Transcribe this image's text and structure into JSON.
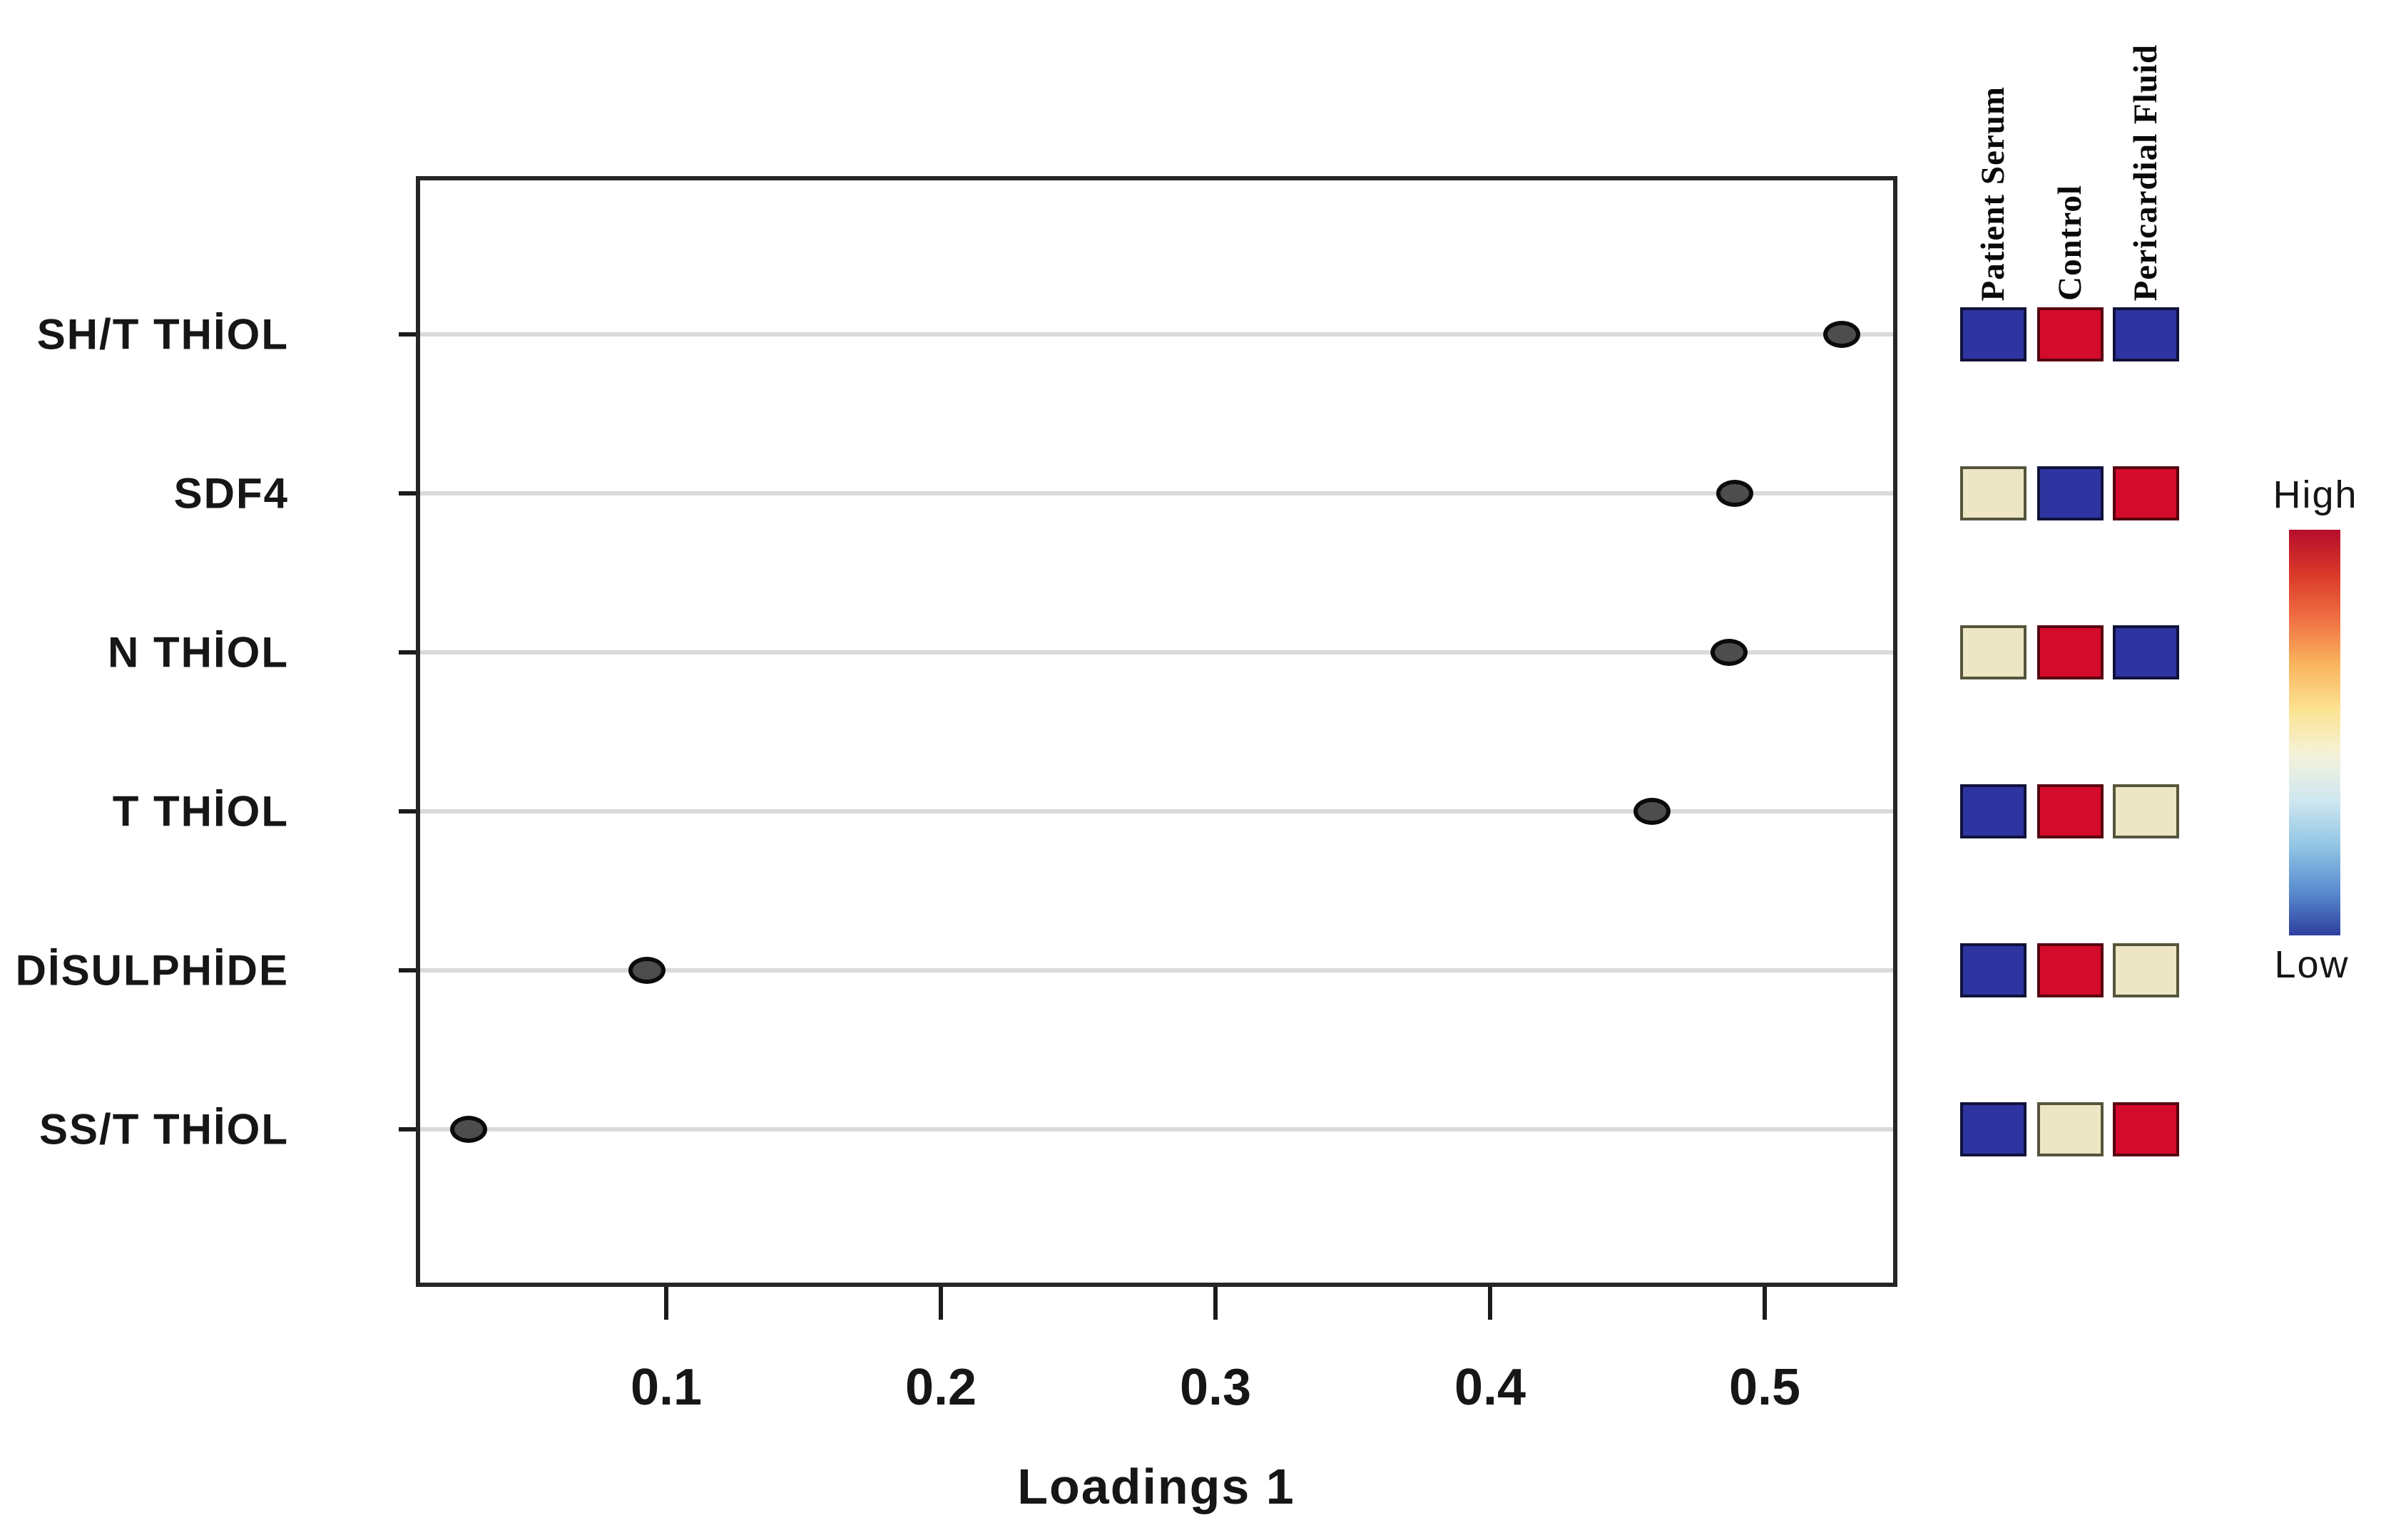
{
  "figure": {
    "background_color": "#ffffff",
    "xaxis_title": "Loadings 1"
  },
  "chart_data": {
    "type": "scatter",
    "subtype": "pls-da-loadings-dot-plot-with-heatmap",
    "title": "",
    "xlabel": "Loadings 1",
    "ylabel": "",
    "xlim": [
      0.009,
      0.548
    ],
    "grid": "horizontal gray line per category, inside box only",
    "x_tick_labels": [
      "0.1",
      "0.2",
      "0.3",
      "0.4",
      "0.5"
    ],
    "x_tick_values": [
      0.1,
      0.2,
      0.3,
      0.4,
      0.5
    ],
    "categories": [
      "SH/T THİOL",
      "SDF4",
      "N THİOL",
      "T THİOL",
      "DİSULPHİDE",
      "SS/T THİOL"
    ],
    "values": [
      0.528,
      0.489,
      0.487,
      0.459,
      0.093,
      0.028
    ],
    "point_color": "#4d4d4d",
    "point_outline": "#0b0b0b",
    "heatmap": {
      "columns": [
        "Patient Serum",
        "Control",
        "Pericardial Fluid"
      ],
      "rows": [
        "SH/T THİOL",
        "SDF4",
        "N THİOL",
        "T THİOL",
        "DİSULPHİDE",
        "SS/T THİOL"
      ],
      "cells": [
        [
          "low",
          "high",
          "low"
        ],
        [
          "mid",
          "low",
          "high"
        ],
        [
          "mid",
          "high",
          "low"
        ],
        [
          "low",
          "high",
          "mid"
        ],
        [
          "low",
          "high",
          "mid"
        ],
        [
          "low",
          "mid",
          "high"
        ]
      ],
      "level_fill_colors": {
        "high": "#d40b2b",
        "mid": "#ece6c4",
        "low": "#2e34a0"
      },
      "level_border_colors": {
        "high": "#570310",
        "mid": "#56553c",
        "low": "#10123a"
      }
    },
    "colorbar": {
      "top_label": "High",
      "bottom_label": "Low",
      "gradient_top_to_bottom": [
        "#b60d2d",
        "#d93a28",
        "#f07143",
        "#f9b55e",
        "#fce392",
        "#f4f2da",
        "#cfe7f0",
        "#92c5e4",
        "#5a8ed0",
        "#2e3f9f"
      ]
    }
  }
}
